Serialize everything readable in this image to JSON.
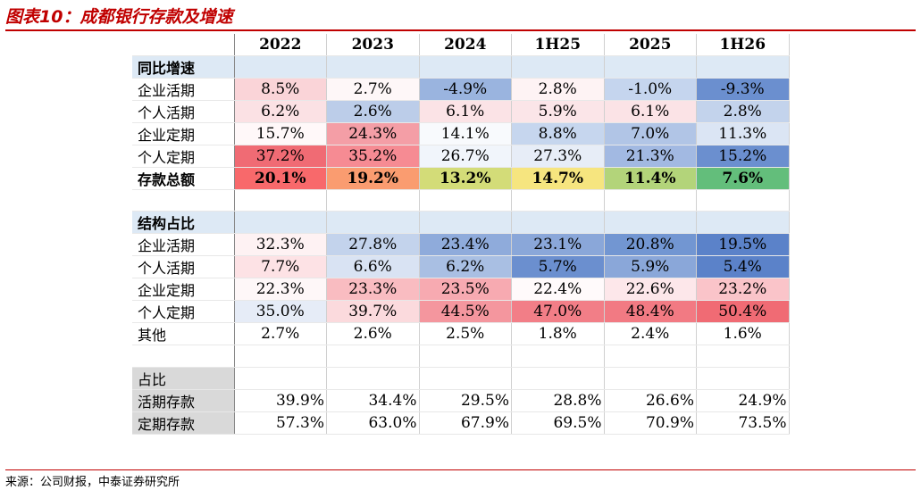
{
  "title": "图表10：成都银行存款及增速",
  "source": "来源：公司财报，中泰证券研究所",
  "columns": [
    "2022",
    "2023",
    "2024",
    "1H25",
    "2025",
    "1H26"
  ],
  "sections": {
    "yoy_title": "同比增速",
    "share_title": "结构占比",
    "ratio_title": "占比"
  },
  "yoy_rows": [
    {
      "label": "企业活期",
      "values": [
        "8.5%",
        "2.7%",
        "-4.9%",
        "2.8%",
        "-1.0%",
        "-9.3%"
      ],
      "colors": [
        "#fad4d8",
        "#fef7f8",
        "#9ab4df",
        "#fef3f4",
        "#c5d5ee",
        "#6b8fcf"
      ]
    },
    {
      "label": "个人活期",
      "values": [
        "6.2%",
        "2.6%",
        "6.1%",
        "5.9%",
        "6.1%",
        "2.8%"
      ],
      "colors": [
        "#fbe1e4",
        "#bccde9",
        "#fbe3e6",
        "#fbe5e8",
        "#fbe3e6",
        "#c3d3ec"
      ]
    },
    {
      "label": "企业定期",
      "values": [
        "15.7%",
        "24.3%",
        "14.1%",
        "8.8%",
        "7.0%",
        "11.3%"
      ],
      "colors": [
        "#fff8f9",
        "#f49ea6",
        "#f8fafd",
        "#c6d6ee",
        "#b1c5e6",
        "#dbe5f4"
      ]
    },
    {
      "label": "个人定期",
      "values": [
        "37.2%",
        "35.2%",
        "26.7%",
        "27.3%",
        "21.3%",
        "15.2%"
      ],
      "colors": [
        "#f06b74",
        "#f68b93",
        "#f1f5fb",
        "#e7edf7",
        "#a2b9e2",
        "#6b8fcf"
      ]
    },
    {
      "label": "存款总额",
      "values": [
        "20.1%",
        "19.2%",
        "13.2%",
        "14.7%",
        "11.4%",
        "7.6%"
      ],
      "colors": [
        "#f8696b",
        "#fa9c70",
        "#d3dc78",
        "#f6e57f",
        "#b3d47a",
        "#63be7b"
      ]
    }
  ],
  "share_rows": [
    {
      "label": "企业活期",
      "values": [
        "32.3%",
        "27.8%",
        "23.4%",
        "23.1%",
        "20.8%",
        "19.5%"
      ],
      "colors": [
        "#fef2f3",
        "#c3d3ec",
        "#8fabdb",
        "#8aa7d9",
        "#7296d2",
        "#5b82c9"
      ]
    },
    {
      "label": "个人活期",
      "values": [
        "7.7%",
        "6.6%",
        "6.2%",
        "5.7%",
        "5.9%",
        "5.4%"
      ],
      "colors": [
        "#fde2e5",
        "#d9e3f3",
        "#a9bfe3",
        "#6b8fcf",
        "#8aa7d9",
        "#5b82c9"
      ]
    },
    {
      "label": "企业定期",
      "values": [
        "22.3%",
        "23.3%",
        "23.5%",
        "22.4%",
        "22.6%",
        "23.2%"
      ],
      "colors": [
        "#fef7f8",
        "#f9bcc1",
        "#f7aab1",
        "#fffafb",
        "#fde7ea",
        "#fac4c9"
      ]
    },
    {
      "label": "个人定期",
      "values": [
        "35.0%",
        "39.7%",
        "44.5%",
        "47.0%",
        "48.4%",
        "50.4%"
      ],
      "colors": [
        "#e6ecf7",
        "#fbdadd",
        "#f4969e",
        "#f27e87",
        "#f27a83",
        "#f06b74"
      ]
    },
    {
      "label": "其他",
      "values": [
        "2.7%",
        "2.6%",
        "2.5%",
        "1.8%",
        "2.4%",
        "1.6%"
      ],
      "colors": [
        "#ffffff",
        "#ffffff",
        "#ffffff",
        "#ffffff",
        "#ffffff",
        "#ffffff"
      ]
    }
  ],
  "ratio_rows": [
    {
      "label": "活期存款",
      "values": [
        "39.9%",
        "34.4%",
        "29.5%",
        "28.8%",
        "26.6%",
        "24.9%"
      ]
    },
    {
      "label": "定期存款",
      "values": [
        "57.3%",
        "63.0%",
        "67.9%",
        "69.5%",
        "70.9%",
        "73.5%"
      ]
    }
  ]
}
